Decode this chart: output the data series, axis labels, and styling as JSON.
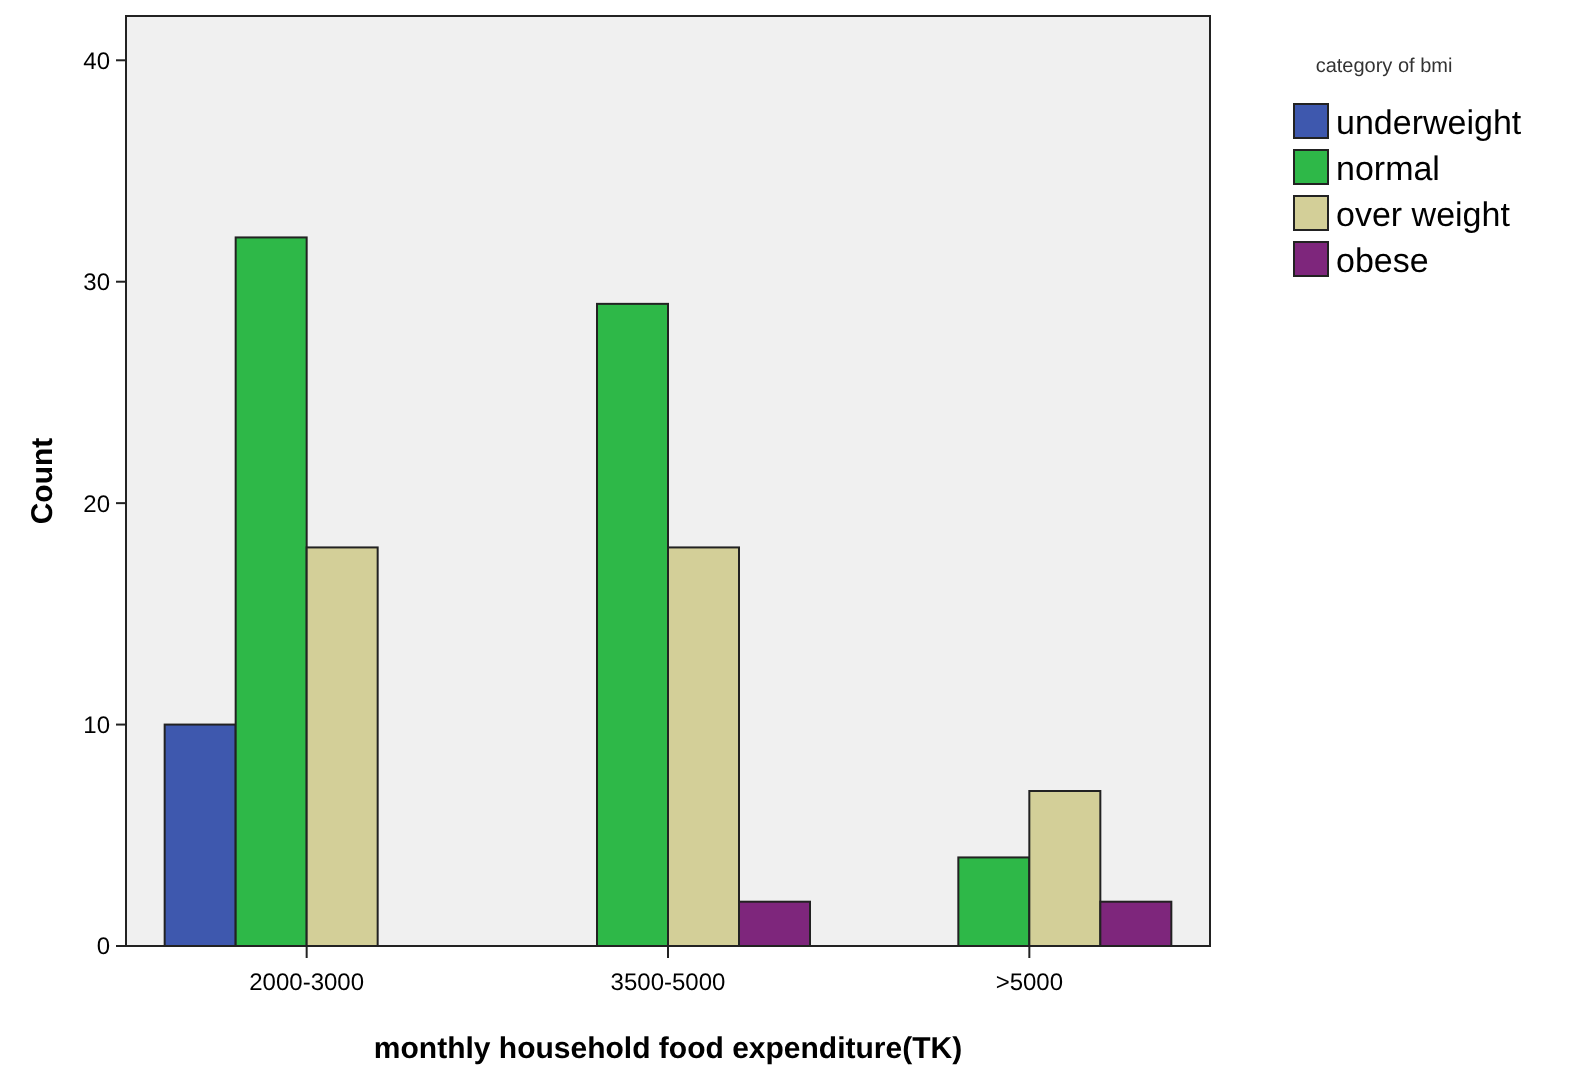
{
  "chart_data": {
    "type": "bar",
    "xlabel": "monthly household food expenditure(TK)",
    "ylabel": "Count",
    "legend_title": "category of bmi",
    "legend": "right",
    "grid": false,
    "categories": [
      "2000-3000",
      "3500-5000",
      ">5000"
    ],
    "series": [
      {
        "name": "underweight",
        "color": "#3e58ae",
        "values": [
          10,
          null,
          null
        ]
      },
      {
        "name": "normal",
        "color": "#2eb848",
        "values": [
          32,
          29,
          4
        ]
      },
      {
        "name": "over weight",
        "color": "#d3cf98",
        "values": [
          18,
          18,
          7
        ]
      },
      {
        "name": "obese",
        "color": "#7e267c",
        "values": [
          null,
          2,
          2
        ]
      }
    ],
    "ylim": [
      0,
      42
    ],
    "yticks": [
      0,
      10,
      20,
      30,
      40
    ]
  }
}
